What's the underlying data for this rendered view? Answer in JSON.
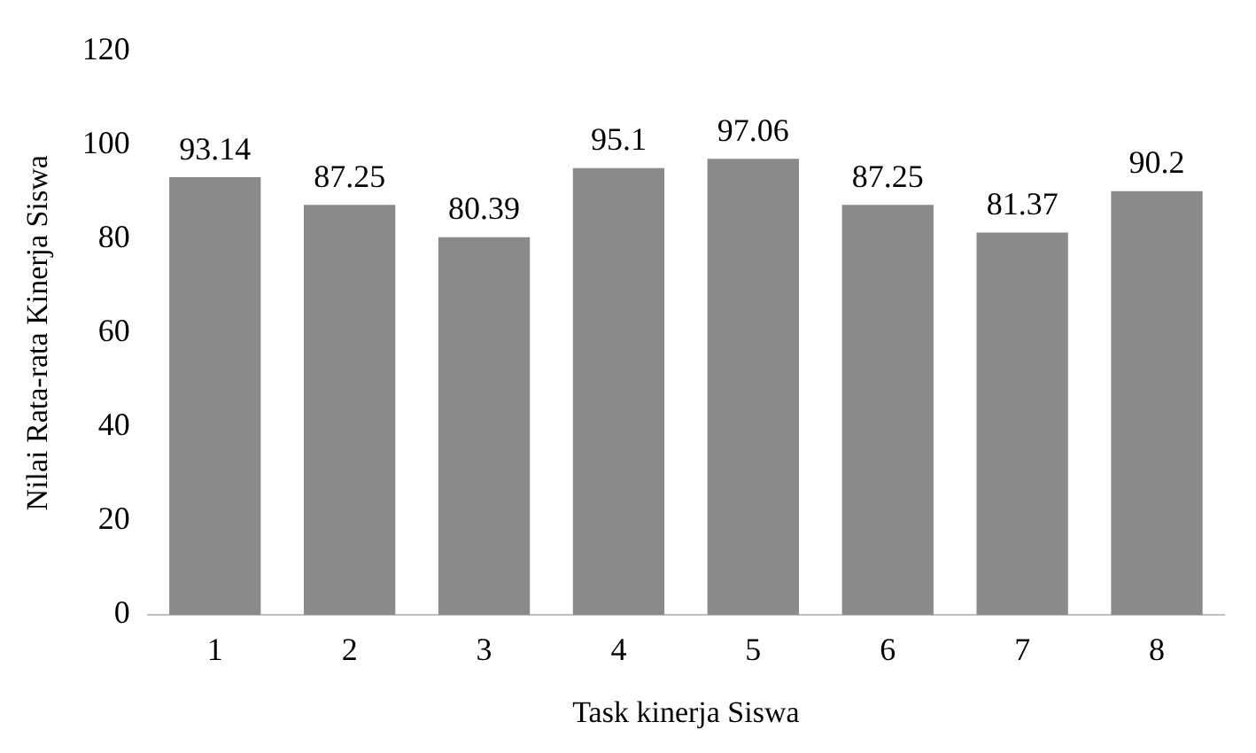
{
  "chart_data": {
    "type": "bar",
    "xlabel": "Task kinerja Siswa",
    "ylabel": "Nilai Rata-rata Kinerja Siswa",
    "categories": [
      "1",
      "2",
      "3",
      "4",
      "5",
      "6",
      "7",
      "8"
    ],
    "values": [
      93.14,
      87.25,
      80.39,
      95.1,
      97.06,
      87.25,
      81.37,
      90.2
    ],
    "color": "#8a8a8a",
    "ylim": [
      0,
      120
    ],
    "yticks": [
      0,
      20,
      40,
      60,
      80,
      100,
      120
    ],
    "grid": false,
    "legend": false,
    "data_labels": true
  }
}
